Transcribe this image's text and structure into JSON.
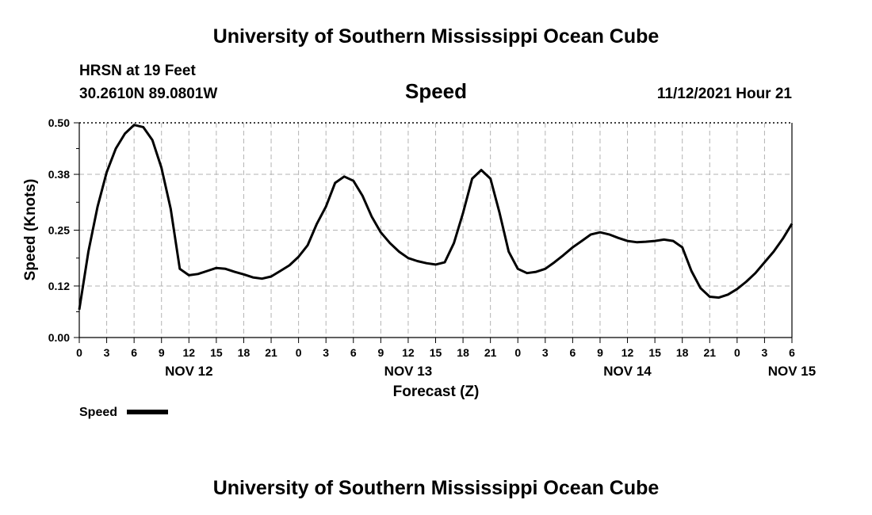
{
  "header": {
    "title": "University of Southern Mississippi Ocean Cube",
    "station": "HRSN at 19 Feet",
    "coords": "30.2610N  89.0801W",
    "variable": "Speed",
    "datetime": "11/12/2021 Hour 21"
  },
  "footer": {
    "title": "University of Southern Mississippi Ocean Cube"
  },
  "chart_data": {
    "type": "line",
    "title": "Speed",
    "xlabel": "Forecast (Z)",
    "ylabel": "Speed (Knots)",
    "ylim": [
      0,
      0.5
    ],
    "yticks": [
      "0.00",
      "0.12",
      "0.25",
      "0.38",
      "0.50"
    ],
    "xlim": [
      0,
      78
    ],
    "xtick_labels": [
      "0",
      "3",
      "6",
      "9",
      "12",
      "15",
      "18",
      "21",
      "0",
      "3",
      "6",
      "9",
      "12",
      "15",
      "18",
      "21",
      "0",
      "3",
      "6",
      "9",
      "12",
      "15",
      "18",
      "21",
      "0",
      "3",
      "6"
    ],
    "day_labels": [
      {
        "label": "NOV 12",
        "x": 12
      },
      {
        "label": "NOV 13",
        "x": 36
      },
      {
        "label": "NOV 14",
        "x": 60
      },
      {
        "label": "NOV 15",
        "x": 78
      }
    ],
    "grid": true,
    "legend": "bottom-left",
    "series": [
      {
        "name": "Speed",
        "color": "#000000",
        "x": [
          0,
          1,
          2,
          3,
          4,
          5,
          6,
          7,
          8,
          9,
          10,
          11,
          12,
          13,
          14,
          15,
          16,
          17,
          18,
          19,
          20,
          21,
          22,
          23,
          24,
          25,
          26,
          27,
          28,
          29,
          30,
          31,
          32,
          33,
          34,
          35,
          36,
          37,
          38,
          39,
          40,
          41,
          42,
          43,
          44,
          45,
          46,
          47,
          48,
          49,
          50,
          51,
          52,
          53,
          54,
          55,
          56,
          57,
          58,
          59,
          60,
          61,
          62,
          63,
          64,
          65,
          66,
          67,
          68,
          69,
          70,
          71,
          72,
          73,
          74,
          75,
          76,
          77,
          78
        ],
        "values": [
          0.065,
          0.2,
          0.305,
          0.385,
          0.44,
          0.475,
          0.495,
          0.49,
          0.46,
          0.395,
          0.3,
          0.16,
          0.145,
          0.148,
          0.155,
          0.162,
          0.16,
          0.153,
          0.147,
          0.14,
          0.137,
          0.142,
          0.155,
          0.168,
          0.188,
          0.215,
          0.265,
          0.305,
          0.36,
          0.375,
          0.365,
          0.33,
          0.282,
          0.245,
          0.22,
          0.2,
          0.185,
          0.178,
          0.173,
          0.17,
          0.175,
          0.22,
          0.29,
          0.37,
          0.39,
          0.37,
          0.29,
          0.2,
          0.16,
          0.15,
          0.153,
          0.16,
          0.175,
          0.192,
          0.21,
          0.225,
          0.24,
          0.245,
          0.24,
          0.232,
          0.225,
          0.222,
          0.223,
          0.225,
          0.228,
          0.225,
          0.21,
          0.155,
          0.115,
          0.095,
          0.093,
          0.1,
          0.113,
          0.13,
          0.15,
          0.175,
          0.2,
          0.23,
          0.265
        ]
      }
    ]
  }
}
